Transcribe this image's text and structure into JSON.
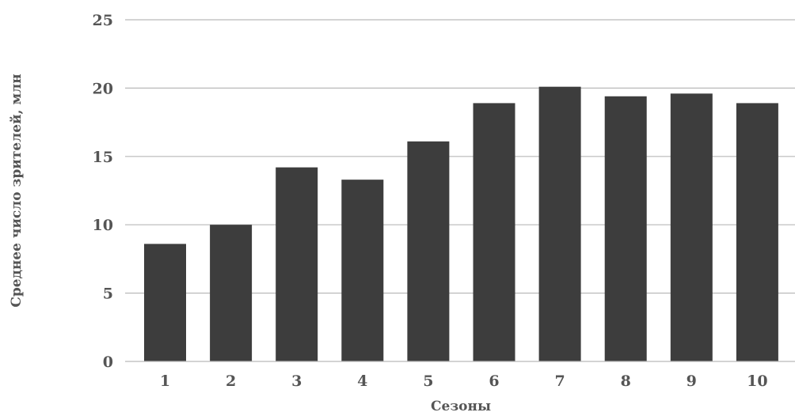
{
  "chart_data": {
    "type": "bar",
    "categories": [
      "1",
      "2",
      "3",
      "4",
      "5",
      "6",
      "7",
      "8",
      "9",
      "10"
    ],
    "values": [
      8.6,
      10.0,
      14.2,
      13.3,
      16.1,
      18.9,
      20.1,
      19.4,
      19.6,
      18.9
    ],
    "xlabel": "Сезоны",
    "ylabel": "Среднее число зрителей, млн",
    "ylim": [
      0,
      25
    ],
    "yticks": [
      0,
      5,
      10,
      15,
      20,
      25
    ],
    "grid": true,
    "bar_color": "#3d3d3d",
    "grid_color": "#b9b9b9",
    "text_color": "#555555"
  }
}
